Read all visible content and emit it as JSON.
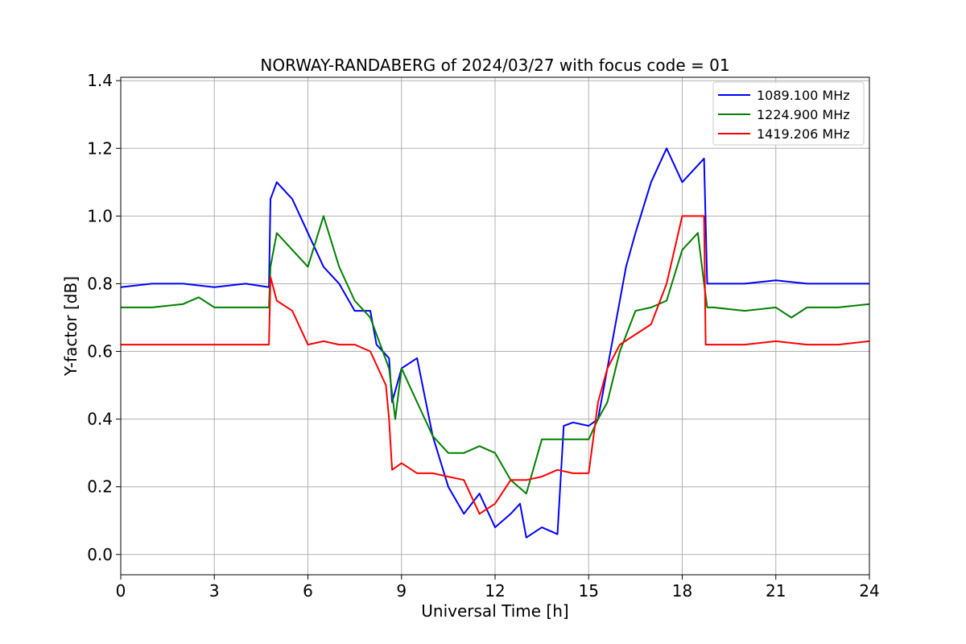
{
  "chart_data": {
    "type": "line",
    "title": "NORWAY-RANDABERG of 2024/03/27 with focus code = 01",
    "xlabel": "Universal Time [h]",
    "ylabel": "Y-factor [dB]",
    "xlim": [
      0,
      24
    ],
    "ylim": [
      -0.06,
      1.41
    ],
    "xticks": [
      0,
      3,
      6,
      9,
      12,
      15,
      18,
      21,
      24
    ],
    "yticks": [
      0.0,
      0.2,
      0.4,
      0.6,
      0.8,
      1.0,
      1.2,
      1.4
    ],
    "ytick_labels": [
      "0.0",
      "0.2",
      "0.4",
      "0.6",
      "0.8",
      "1.0",
      "1.2",
      "1.4"
    ],
    "grid": true,
    "legend_position": "top-right",
    "series": [
      {
        "name": "1089.100 MHz",
        "color": "#0000ff",
        "x": [
          0,
          1,
          2,
          3,
          4,
          4.75,
          4.8,
          5.0,
          5.5,
          6.0,
          6.5,
          7.0,
          7.5,
          8.0,
          8.2,
          8.6,
          8.7,
          9.0,
          9.5,
          10.0,
          10.5,
          11.0,
          11.5,
          12.0,
          12.5,
          12.8,
          13.0,
          13.5,
          14.0,
          14.2,
          14.5,
          15.0,
          15.3,
          15.6,
          15.9,
          16.2,
          16.5,
          17.0,
          17.5,
          18.0,
          18.5,
          18.7,
          18.8,
          19,
          20,
          21,
          22,
          23,
          24
        ],
        "y": [
          0.79,
          0.8,
          0.8,
          0.79,
          0.8,
          0.79,
          1.05,
          1.1,
          1.05,
          0.95,
          0.85,
          0.8,
          0.72,
          0.72,
          0.62,
          0.58,
          0.45,
          0.55,
          0.58,
          0.35,
          0.2,
          0.12,
          0.18,
          0.08,
          0.12,
          0.15,
          0.05,
          0.08,
          0.06,
          0.38,
          0.39,
          0.38,
          0.4,
          0.55,
          0.7,
          0.85,
          0.95,
          1.1,
          1.2,
          1.1,
          1.15,
          1.17,
          0.8,
          0.8,
          0.8,
          0.81,
          0.8,
          0.8,
          0.8
        ]
      },
      {
        "name": "1224.900 MHz",
        "color": "#008000",
        "x": [
          0,
          1,
          2,
          2.5,
          3,
          4,
          4.75,
          4.8,
          5.0,
          5.5,
          6.0,
          6.5,
          7.0,
          7.5,
          8.0,
          8.6,
          8.8,
          9.0,
          9.5,
          10.0,
          10.5,
          11.0,
          11.5,
          12.0,
          12.5,
          13.0,
          13.5,
          14.0,
          14.5,
          15.0,
          15.3,
          15.6,
          16.0,
          16.5,
          17.0,
          17.5,
          18.0,
          18.5,
          18.7,
          18.8,
          19,
          20,
          21,
          21.5,
          22,
          23,
          24
        ],
        "y": [
          0.73,
          0.73,
          0.74,
          0.76,
          0.73,
          0.73,
          0.73,
          0.85,
          0.95,
          0.9,
          0.85,
          1.0,
          0.85,
          0.75,
          0.7,
          0.55,
          0.4,
          0.55,
          0.45,
          0.35,
          0.3,
          0.3,
          0.32,
          0.3,
          0.22,
          0.18,
          0.34,
          0.34,
          0.34,
          0.34,
          0.4,
          0.45,
          0.6,
          0.72,
          0.73,
          0.75,
          0.9,
          0.95,
          0.8,
          0.73,
          0.73,
          0.72,
          0.73,
          0.7,
          0.73,
          0.73,
          0.74
        ]
      },
      {
        "name": "1419.206 MHz",
        "color": "#ff0000",
        "x": [
          0,
          1,
          2,
          3,
          4,
          4.75,
          4.8,
          5.0,
          5.5,
          6.0,
          6.5,
          7.0,
          7.5,
          8.0,
          8.5,
          8.6,
          8.7,
          9.0,
          9.5,
          10.0,
          10.5,
          11.0,
          11.5,
          12.0,
          12.5,
          13.0,
          13.5,
          14.0,
          14.5,
          15.0,
          15.3,
          15.6,
          16.0,
          16.5,
          17.0,
          17.5,
          18.0,
          18.5,
          18.7,
          18.75,
          19,
          20,
          21,
          22,
          23,
          24
        ],
        "y": [
          0.62,
          0.62,
          0.62,
          0.62,
          0.62,
          0.62,
          0.82,
          0.75,
          0.72,
          0.62,
          0.63,
          0.62,
          0.62,
          0.6,
          0.5,
          0.4,
          0.25,
          0.27,
          0.24,
          0.24,
          0.23,
          0.22,
          0.12,
          0.15,
          0.22,
          0.22,
          0.23,
          0.25,
          0.24,
          0.24,
          0.45,
          0.55,
          0.62,
          0.65,
          0.68,
          0.8,
          1.0,
          1.0,
          1.0,
          0.62,
          0.62,
          0.62,
          0.63,
          0.62,
          0.62,
          0.63
        ]
      }
    ]
  }
}
